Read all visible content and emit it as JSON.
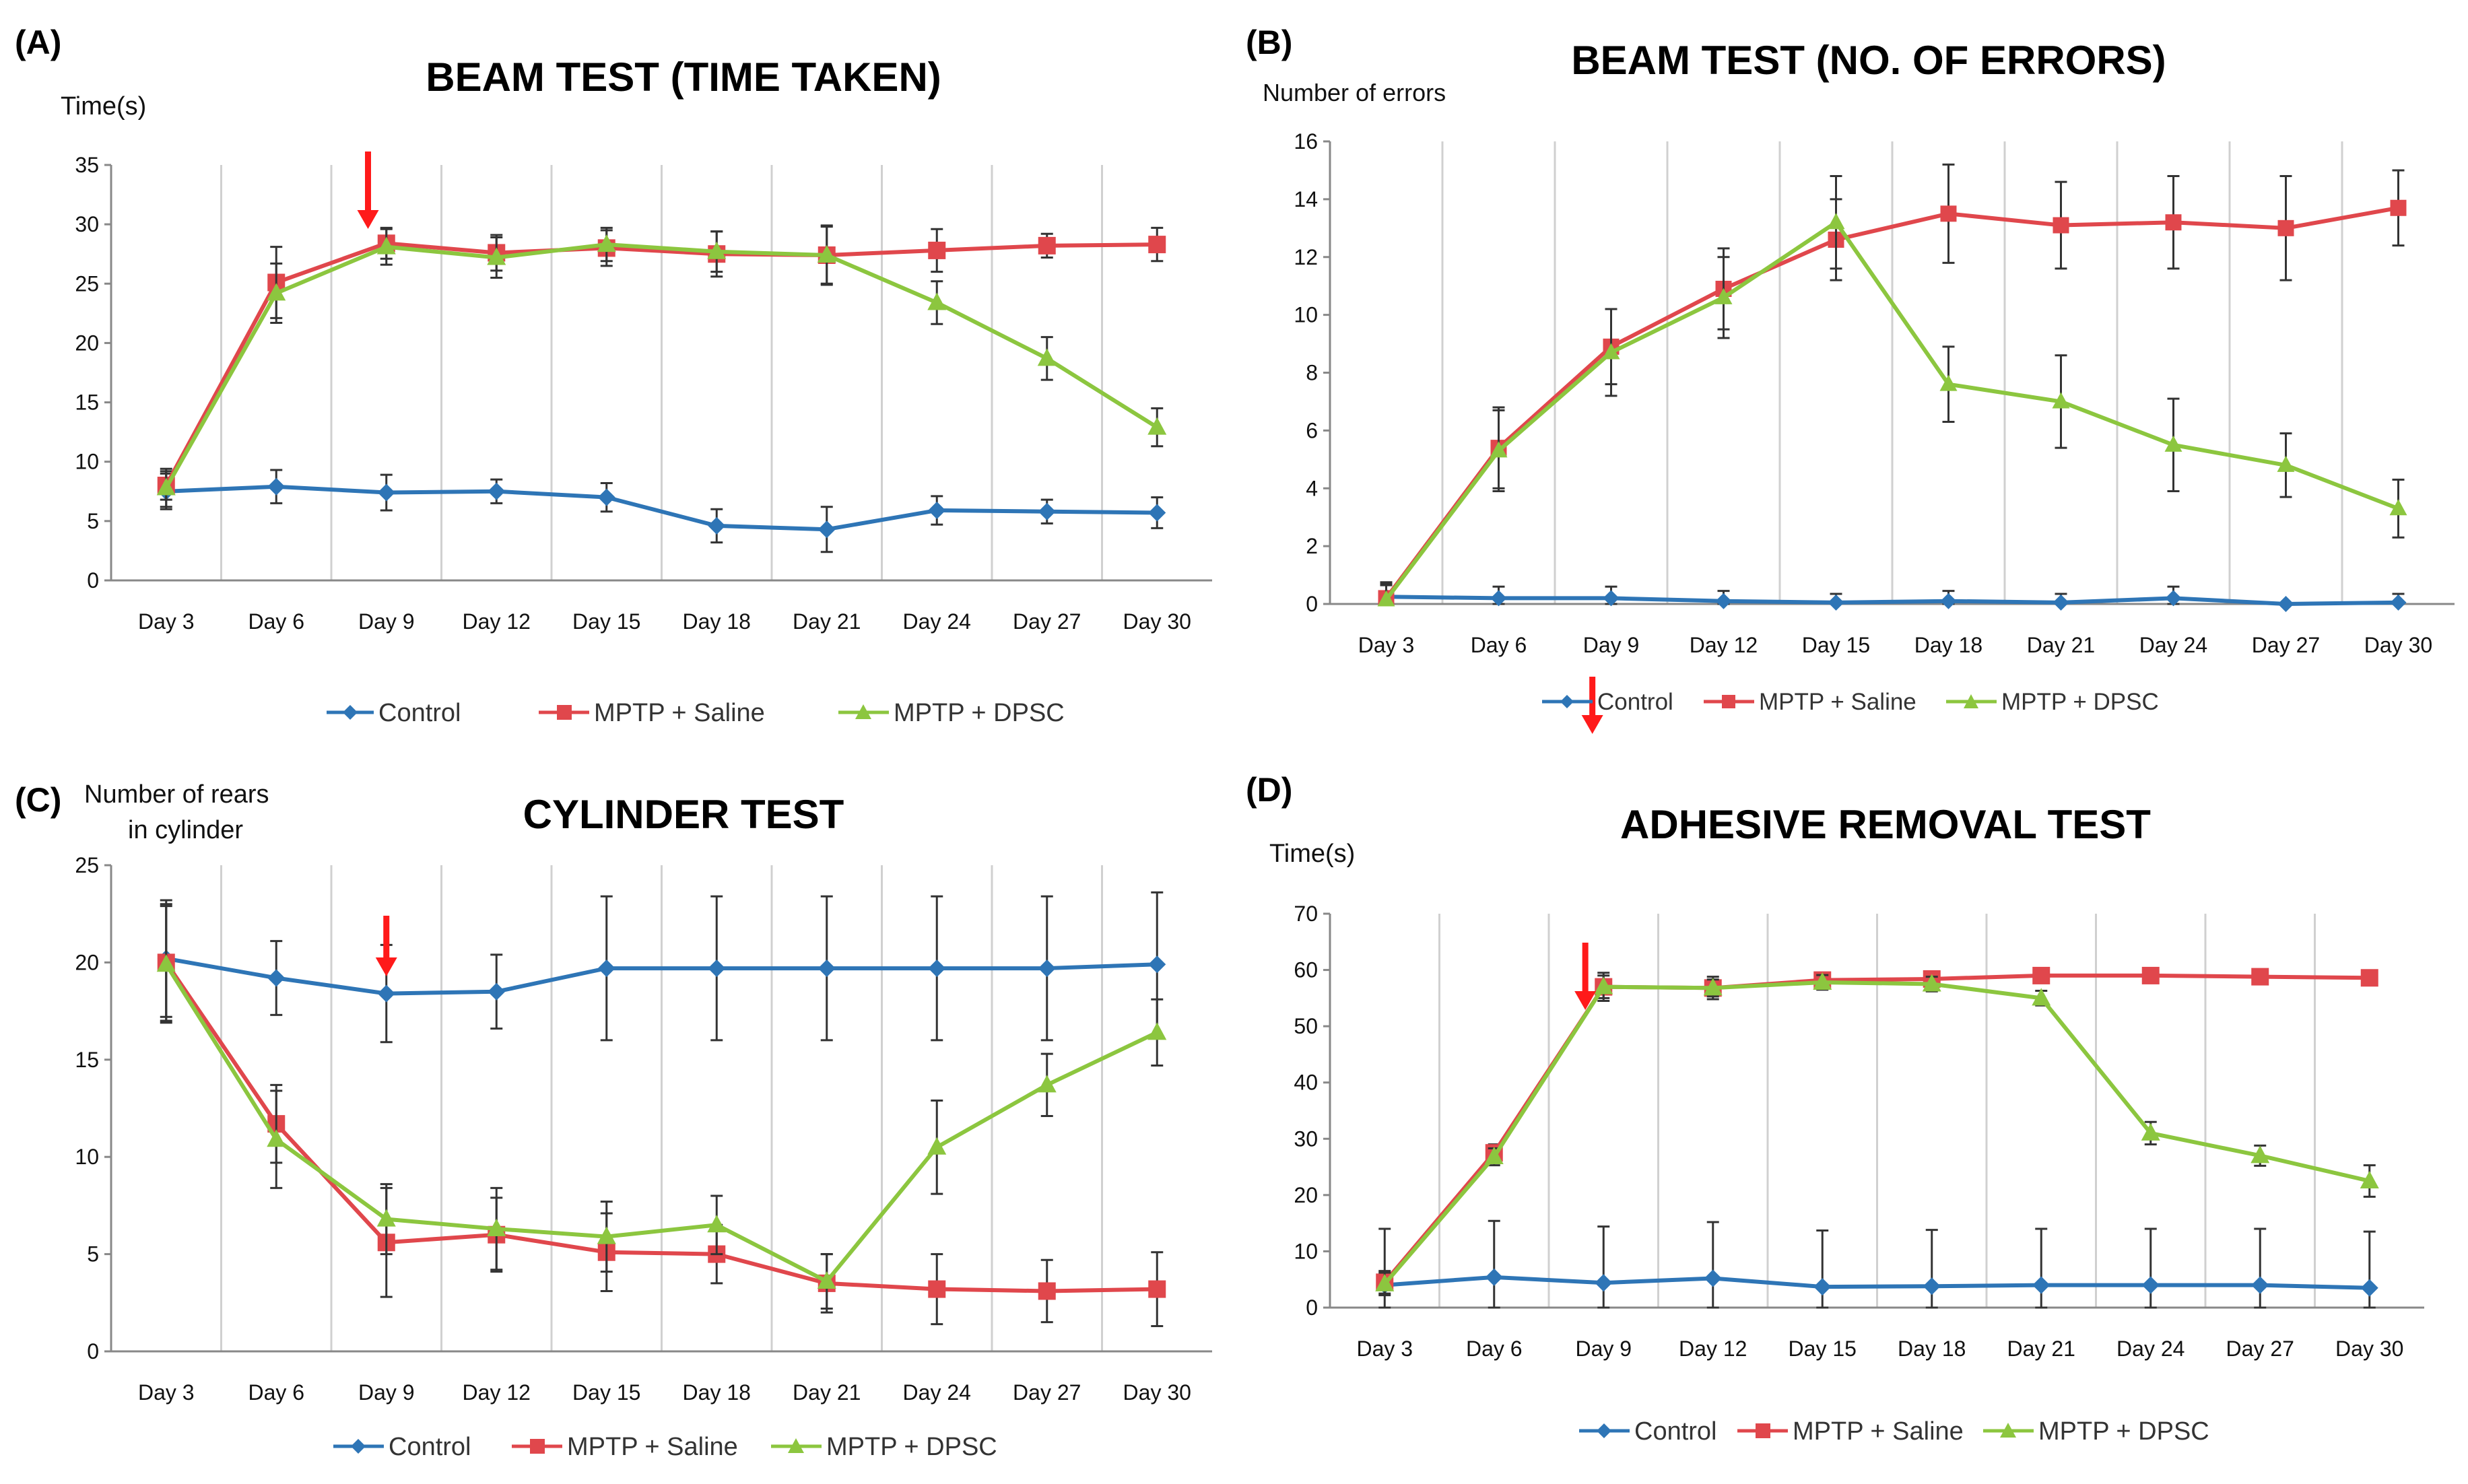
{
  "chart_data": [
    {
      "type": "line",
      "panel": "(A)",
      "title": "BEAM TEST (TIME TAKEN)",
      "ylabel": "Time(s)",
      "xlabel": "",
      "ylim": [
        0,
        35
      ],
      "yticks": [
        0,
        5,
        10,
        15,
        20,
        25,
        30,
        35
      ],
      "grid": "vertical",
      "categories": [
        "Day 3",
        "Day 6",
        "Day 9",
        "Day 12",
        "Day 15",
        "Day 18",
        "Day 21",
        "Day 24",
        "Day 27",
        "Day 30"
      ],
      "arrow_at_day": 8.5,
      "series": [
        {
          "name": "Control",
          "color": "#2e75b6",
          "marker": "diamond",
          "values": [
            7.5,
            7.9,
            7.4,
            7.5,
            7.0,
            4.6,
            4.3,
            5.9,
            5.8,
            5.7
          ],
          "errors": [
            1.5,
            1.4,
            1.5,
            1.0,
            1.2,
            1.4,
            1.9,
            1.2,
            1.0,
            1.3
          ]
        },
        {
          "name": "MPTP + Saline",
          "color": "#e0474c",
          "marker": "square",
          "values": [
            8.0,
            25.1,
            28.4,
            27.6,
            28.0,
            27.5,
            27.4,
            27.8,
            28.2,
            28.3
          ],
          "errors": [
            1.2,
            3.0,
            1.3,
            1.5,
            1.5,
            1.9,
            2.4,
            1.8,
            1.0,
            1.4
          ]
        },
        {
          "name": "MPTP + DPSC",
          "color": "#8cc63f",
          "marker": "triangle",
          "values": [
            7.8,
            24.2,
            28.1,
            27.2,
            28.3,
            27.7,
            27.4,
            23.4,
            18.7,
            12.9
          ],
          "errors": [
            1.6,
            2.5,
            1.5,
            1.7,
            1.4,
            1.7,
            2.5,
            1.8,
            1.8,
            1.6
          ]
        }
      ]
    },
    {
      "type": "line",
      "panel": "(B)",
      "title": "BEAM TEST (NO. OF ERRORS)",
      "ylabel": "Number of errors",
      "xlabel": "",
      "ylim": [
        0,
        16
      ],
      "yticks": [
        0,
        2,
        4,
        6,
        8,
        10,
        12,
        14,
        16
      ],
      "grid": "vertical",
      "categories": [
        "Day 3",
        "Day 6",
        "Day 9",
        "Day 12",
        "Day 15",
        "Day 18",
        "Day 21",
        "Day 24",
        "Day 27",
        "Day 30"
      ],
      "arrow_at_day": 8.5,
      "series": [
        {
          "name": "Control",
          "color": "#2e75b6",
          "marker": "diamond",
          "values": [
            0.25,
            0.2,
            0.2,
            0.1,
            0.05,
            0.1,
            0.05,
            0.2,
            0.0,
            0.05
          ],
          "errors": [
            0.5,
            0.4,
            0.4,
            0.35,
            0.3,
            0.35,
            0.3,
            0.4,
            0.0,
            0.3
          ]
        },
        {
          "name": "MPTP + Saline",
          "color": "#e0474c",
          "marker": "square",
          "values": [
            0.2,
            5.4,
            8.9,
            10.9,
            12.6,
            13.5,
            13.1,
            13.2,
            13.0,
            13.7
          ],
          "errors": [
            0.5,
            1.4,
            1.3,
            1.4,
            1.4,
            1.7,
            1.5,
            1.6,
            1.8,
            1.3
          ]
        },
        {
          "name": "MPTP + DPSC",
          "color": "#8cc63f",
          "marker": "triangle",
          "values": [
            0.15,
            5.3,
            8.7,
            10.6,
            13.2,
            7.6,
            7.0,
            5.5,
            4.8,
            3.3
          ],
          "errors": [
            0.5,
            1.4,
            1.5,
            1.4,
            1.6,
            1.3,
            1.6,
            1.6,
            1.1,
            1.0
          ]
        }
      ]
    },
    {
      "type": "line",
      "panel": "(C)",
      "title": "CYLINDER TEST",
      "ylabel_lines": [
        "Number of rears",
        "in cylinder"
      ],
      "xlabel": "",
      "ylim": [
        0,
        25
      ],
      "yticks": [
        0,
        5,
        10,
        15,
        20,
        25
      ],
      "grid": "vertical",
      "categories": [
        "Day 3",
        "Day 6",
        "Day 9",
        "Day 12",
        "Day 15",
        "Day 18",
        "Day 21",
        "Day 24",
        "Day 27",
        "Day 30"
      ],
      "arrow_at_day": 9.0,
      "series": [
        {
          "name": "Control",
          "color": "#2e75b6",
          "marker": "diamond",
          "values": [
            20.2,
            19.2,
            18.4,
            18.5,
            19.7,
            19.7,
            19.7,
            19.7,
            19.7,
            19.9
          ],
          "errors": [
            3.0,
            1.9,
            2.5,
            1.9,
            3.7,
            3.7,
            3.7,
            3.7,
            3.7,
            3.7
          ]
        },
        {
          "name": "MPTP + Saline",
          "color": "#e0474c",
          "marker": "square",
          "values": [
            20.0,
            11.7,
            5.6,
            6.0,
            5.1,
            5.0,
            3.5,
            3.2,
            3.1,
            3.2
          ],
          "errors": [
            3.0,
            2.0,
            2.8,
            1.9,
            2.0,
            1.5,
            1.5,
            1.8,
            1.6,
            1.9
          ]
        },
        {
          "name": "MPTP + DPSC",
          "color": "#8cc63f",
          "marker": "triangle",
          "values": [
            19.9,
            10.9,
            6.8,
            6.3,
            5.9,
            6.5,
            3.6,
            10.5,
            13.7,
            16.4
          ],
          "errors": [
            3.0,
            2.5,
            1.8,
            2.1,
            1.8,
            1.5,
            1.4,
            2.4,
            1.6,
            1.7
          ]
        }
      ]
    },
    {
      "type": "line",
      "panel": "(D)",
      "title": "ADHESIVE REMOVAL TEST",
      "ylabel": "Time(s)",
      "xlabel": "",
      "ylim": [
        0,
        70
      ],
      "yticks": [
        0,
        10,
        20,
        30,
        40,
        50,
        60,
        70
      ],
      "grid": "vertical",
      "categories": [
        "Day 3",
        "Day 6",
        "Day 9",
        "Day 12",
        "Day 15",
        "Day 18",
        "Day 21",
        "Day 24",
        "Day 27",
        "Day 30"
      ],
      "arrow_at_day": 8.5,
      "series": [
        {
          "name": "Control",
          "color": "#2e75b6",
          "marker": "diamond",
          "values": [
            4.0,
            5.4,
            4.4,
            5.2,
            3.7,
            3.8,
            4.0,
            4.0,
            4.0,
            3.5
          ],
          "errors": [
            10.0,
            10.0,
            10.0,
            10.0,
            10.0,
            10.0,
            10.0,
            10.0,
            10.0,
            10.0
          ]
        },
        {
          "name": "MPTP + Saline",
          "color": "#e0474c",
          "marker": "square",
          "values": [
            4.5,
            27.5,
            57.0,
            56.8,
            58.2,
            58.4,
            59.0,
            59.0,
            58.8,
            58.6
          ],
          "errors": [
            2.0,
            1.5,
            2.5,
            2.0,
            1.3,
            1.3,
            1.0,
            1.0,
            1.0,
            1.0
          ]
        },
        {
          "name": "MPTP + DPSC",
          "color": "#8cc63f",
          "marker": "triangle",
          "values": [
            4.2,
            26.8,
            57.0,
            56.8,
            57.8,
            57.5,
            55.0,
            31.0,
            27.0,
            22.5
          ],
          "errors": [
            2.0,
            1.5,
            2.0,
            1.5,
            1.3,
            1.3,
            1.3,
            2.0,
            1.8,
            2.8
          ]
        }
      ]
    }
  ]
}
